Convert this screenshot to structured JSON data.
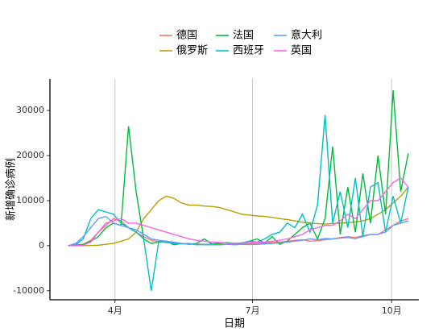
{
  "chart_data": {
    "type": "line",
    "x_label": "日期",
    "y_label": "新增确诊病例",
    "x": [
      0,
      5,
      10,
      15,
      20,
      25,
      30,
      35,
      40,
      45,
      50,
      55,
      60,
      65,
      70,
      75,
      80,
      85,
      90,
      95,
      100,
      105,
      110,
      115,
      120,
      125,
      130,
      135,
      140,
      145,
      150,
      155,
      160,
      165,
      170,
      175,
      180,
      185,
      190,
      195,
      200,
      205,
      210,
      215,
      220,
      225
    ],
    "xlim": [
      -12,
      232
    ],
    "xticks": [
      {
        "value": 31,
        "label": "4月"
      },
      {
        "value": 122,
        "label": "7月"
      },
      {
        "value": 214,
        "label": "10月"
      }
    ],
    "ylim": [
      -12000,
      37000
    ],
    "yticks": [
      -10000,
      0,
      10000,
      20000,
      30000
    ],
    "grid": "x",
    "legend": "top",
    "series": [
      {
        "name": "德国",
        "color": "#F8766D",
        "values": [
          0,
          50,
          300,
          1200,
          3000,
          4500,
          6000,
          5500,
          4000,
          3000,
          2000,
          1200,
          900,
          700,
          600,
          500,
          400,
          400,
          300,
          300,
          300,
          350,
          500,
          400,
          400,
          500,
          600,
          700,
          800,
          1000,
          1200,
          1300,
          1000,
          1100,
          1300,
          1500,
          1800,
          2000,
          1800,
          2200,
          2500,
          2500,
          3500,
          4500,
          5500,
          6000
        ]
      },
      {
        "name": "俄罗斯",
        "color": "#B79F00",
        "values": [
          0,
          0,
          10,
          30,
          100,
          300,
          500,
          1000,
          1500,
          3000,
          6000,
          8000,
          10000,
          11000,
          10500,
          9500,
          9000,
          9000,
          8800,
          8700,
          8500,
          8000,
          7500,
          7000,
          6800,
          6600,
          6500,
          6300,
          6000,
          5800,
          5500,
          5200,
          5000,
          4900,
          4800,
          4900,
          5000,
          5100,
          5300,
          5500,
          6000,
          7000,
          8000,
          9500,
          11000,
          13000
        ]
      },
      {
        "name": "法国",
        "color": "#00BA38",
        "values": [
          0,
          100,
          300,
          1000,
          2000,
          4000,
          5000,
          4500,
          26500,
          12000,
          1500,
          500,
          800,
          1000,
          200,
          500,
          300,
          500,
          1500,
          400,
          500,
          700,
          500,
          600,
          1000,
          1500,
          600,
          2000,
          300,
          1000,
          2500,
          4000,
          5000,
          1500,
          6000,
          22000,
          2500,
          13000,
          3000,
          16000,
          5000,
          20000,
          7000,
          34500,
          12000,
          20500
        ]
      },
      {
        "name": "西班牙",
        "color": "#00BFC4",
        "values": [
          0,
          200,
          1500,
          6000,
          8000,
          7500,
          7000,
          5000,
          4000,
          3000,
          1500,
          -10000,
          1000,
          800,
          500,
          400,
          500,
          200,
          300,
          300,
          200,
          300,
          400,
          600,
          1000,
          800,
          1500,
          2500,
          3000,
          5000,
          4000,
          7000,
          3000,
          9000,
          29000,
          5000,
          12000,
          4000,
          15000,
          2000,
          13000,
          14000,
          3000,
          11000,
          5000,
          13000
        ]
      },
      {
        "name": "意大利",
        "color": "#619CFF",
        "values": [
          0,
          500,
          2000,
          4000,
          6000,
          6500,
          5000,
          4500,
          4000,
          3500,
          2500,
          1500,
          1200,
          1000,
          800,
          500,
          300,
          300,
          200,
          200,
          200,
          300,
          200,
          300,
          250,
          300,
          400,
          500,
          600,
          800,
          1000,
          1200,
          1500,
          1300,
          1600,
          1500,
          1700,
          1800,
          1600,
          2000,
          2500,
          2500,
          3000,
          4500,
          5000,
          5500
        ]
      },
      {
        "name": "英国",
        "color": "#F564E3",
        "values": [
          0,
          20,
          100,
          800,
          3000,
          5000,
          5500,
          6000,
          5000,
          5000,
          4500,
          4000,
          3500,
          3000,
          2500,
          2000,
          1500,
          1200,
          1000,
          800,
          700,
          600,
          500,
          600,
          700,
          800,
          800,
          1000,
          1200,
          1500,
          2000,
          2500,
          3500,
          4000,
          4500,
          4500,
          5500,
          7000,
          6000,
          8000,
          10000,
          10000,
          12000,
          14000,
          15000,
          13000
        ]
      }
    ]
  }
}
